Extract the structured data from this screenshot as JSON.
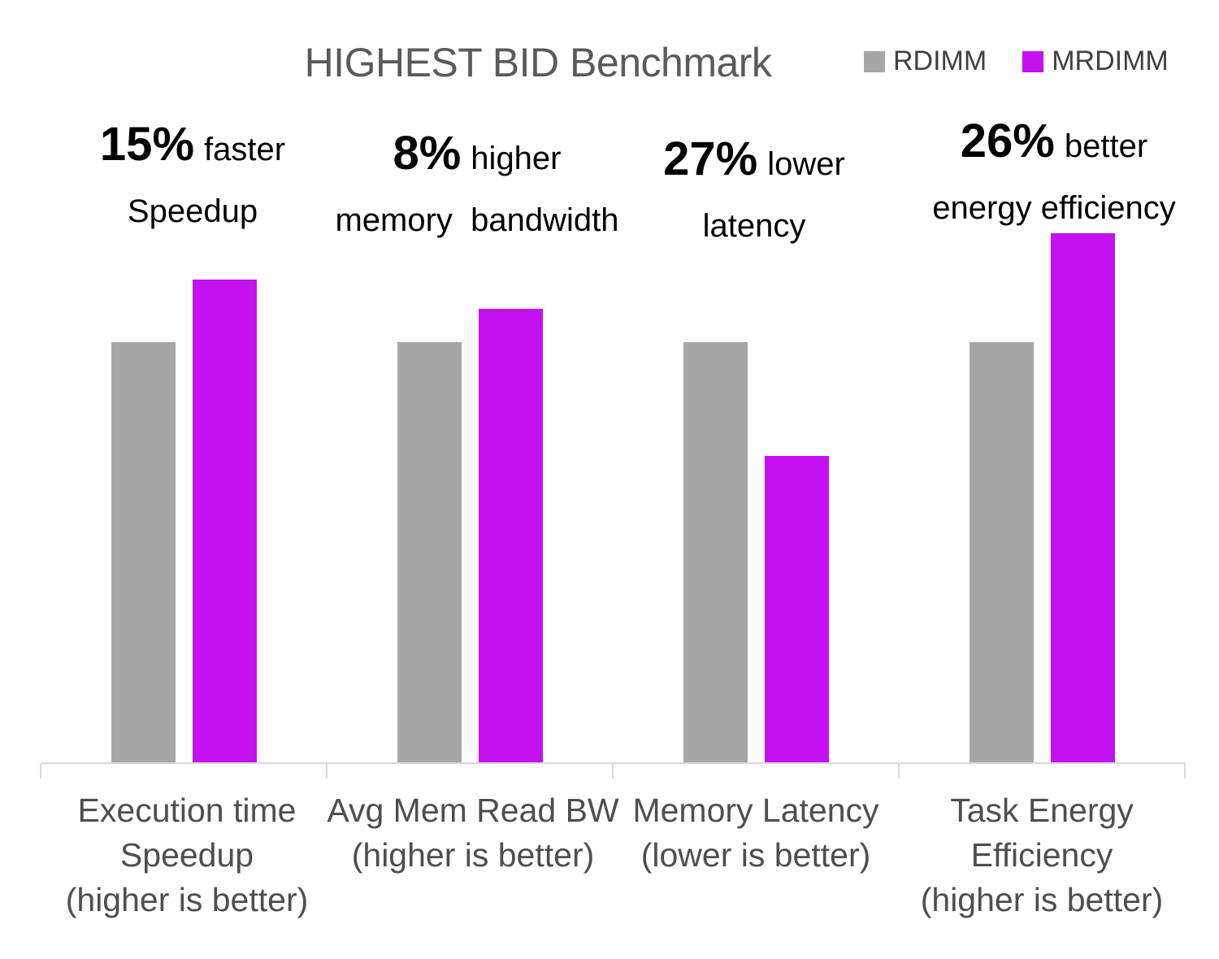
{
  "title": "HIGHEST BID Benchmark",
  "colors": {
    "rdimm": "#A6A6A6",
    "mrdimm": "#C411F0",
    "axis": "#D9D9D9"
  },
  "legend": [
    {
      "label": "RDIMM",
      "color": "#A6A6A6"
    },
    {
      "label": "MRDIMM",
      "color": "#C411F0"
    }
  ],
  "chart_data": {
    "type": "bar",
    "title": "HIGHEST BID Benchmark",
    "categories": [
      "Execution time Speedup (higher is better)",
      "Avg Mem Read BW (higher is better)",
      "Memory Latency (lower is better)",
      "Task Energy Efficiency (higher is better)"
    ],
    "categories_lines": [
      [
        "Execution time",
        "Speedup",
        "(higher is better)"
      ],
      [
        "Avg Mem Read BW",
        "(higher is better)"
      ],
      [
        "Memory Latency",
        "(lower is better)"
      ],
      [
        "Task Energy",
        "Efficiency",
        "(higher is better)"
      ]
    ],
    "series": [
      {
        "name": "RDIMM",
        "values": [
          1.0,
          1.0,
          1.0,
          1.0
        ]
      },
      {
        "name": "MRDIMM",
        "values": [
          1.15,
          1.08,
          0.73,
          1.26
        ]
      }
    ],
    "ylim": [
      0,
      1.3
    ],
    "grid": false,
    "y_axis_visible": false,
    "legend_position": "top-right",
    "annotations": [
      {
        "value": "15%",
        "text": "faster",
        "line2": "Speedup"
      },
      {
        "value": "8%",
        "text": "higher",
        "line2": "memory  bandwidth"
      },
      {
        "value": "27%",
        "text": "lower",
        "line2": "latency"
      },
      {
        "value": "26%",
        "text": "better",
        "line2": "energy efficiency"
      }
    ]
  }
}
